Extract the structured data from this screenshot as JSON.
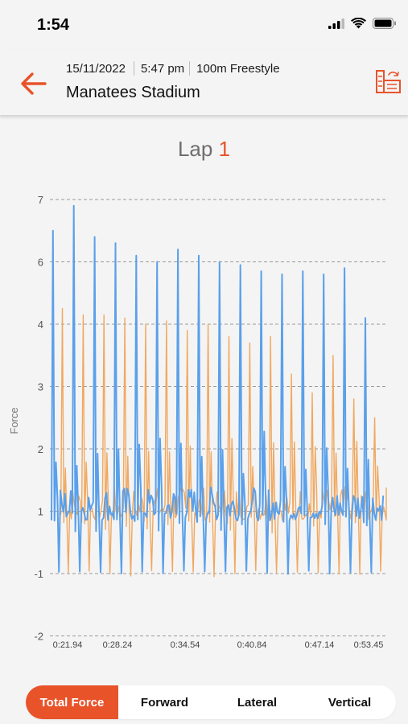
{
  "status_bar": {
    "time": "1:54"
  },
  "header": {
    "date": "15/11/2022",
    "time": "5:47 pm",
    "event": "100m Freestyle",
    "venue": "Manatees Stadium"
  },
  "lap": {
    "label": "Lap",
    "number": "1"
  },
  "colors": {
    "accent": "#e8532a",
    "series_blue": "#5aa0ea",
    "series_orange": "#f0a860"
  },
  "icons": {
    "back": "arrow-left-icon",
    "compare": "compare-laps-icon"
  },
  "chart_data": {
    "type": "line",
    "ylabel": "Force",
    "y_ticks": [
      "7",
      "6",
      "4",
      "3",
      "2",
      "1",
      "-1",
      "-2"
    ],
    "x_ticks": [
      "0:21.94",
      "0:28.24",
      "0:34.54",
      "0:40.84",
      "0:47.14",
      "0:53.45"
    ],
    "grid": true,
    "series": [
      {
        "color": "#5aa0ea",
        "peaks": [
          6.5,
          6.9,
          6.4,
          6.3,
          6.1,
          6.0,
          6.2,
          6.1,
          6.0,
          5.9,
          5.7,
          5.6,
          5.7,
          5.6,
          5.8,
          4.2
        ]
      },
      {
        "color": "#f0a860",
        "peaks": [
          4.5,
          4.3,
          4.3,
          4.2,
          4.0,
          4.1,
          3.9,
          4.0,
          3.8,
          3.7,
          3.8,
          3.2,
          2.9,
          3.5,
          2.8,
          2.5
        ]
      }
    ]
  },
  "tabs": [
    {
      "label": "Total Force",
      "active": true
    },
    {
      "label": "Forward",
      "active": false
    },
    {
      "label": "Lateral",
      "active": false
    },
    {
      "label": "Vertical",
      "active": false
    }
  ]
}
